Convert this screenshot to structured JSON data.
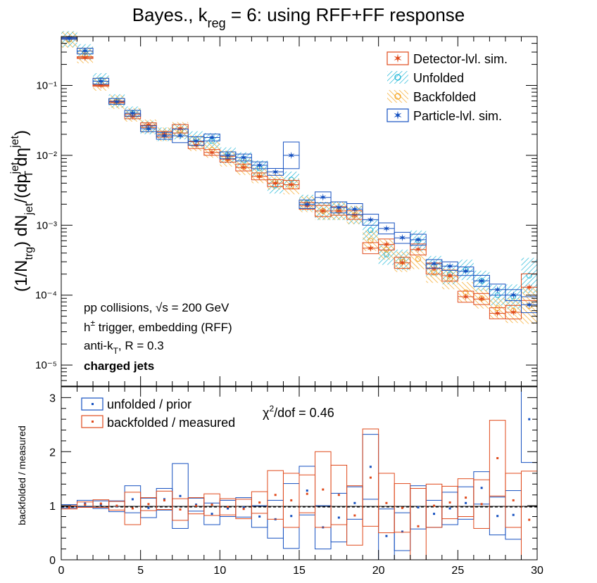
{
  "title_parts": {
    "pre": "Bayes., k",
    "sub": "reg",
    "post": " = 6: using RFF+FF response"
  },
  "colors": {
    "detector": "#e04a1c",
    "unfolded": "#22b8d8",
    "backfolded": "#f5a623",
    "particle": "#1550c0",
    "axis": "#000000"
  },
  "legend_top": [
    {
      "label": "Detector-lvl. sim.",
      "key": "detector",
      "icon": "star-marker-box"
    },
    {
      "label": "Unfolded",
      "key": "unfolded",
      "icon": "hatched-circle"
    },
    {
      "label": "Backfolded",
      "key": "backfolded",
      "icon": "hatched-circle"
    },
    {
      "label": "Particle-lvl. sim.",
      "key": "particle",
      "icon": "star-marker-box"
    }
  ],
  "legend_bottom": [
    {
      "label": "unfolded / prior",
      "key": "particle"
    },
    {
      "label": "backfolded / measured",
      "key": "detector"
    }
  ],
  "top_ylabel_parts": {
    "a": "(1/N",
    "a_sub": "trg",
    "b": ") dN",
    "b_sub": "jet",
    "c": "/(dp",
    "c_sup": "jet",
    "c_sub": "T",
    "d": "dη",
    "d_sup": "jet",
    "e": ")"
  },
  "bottom_ylabel": "backfolded / measured",
  "annotation": {
    "line1": "pp collisions, √s = 200 GeV",
    "line2_pre": "h",
    "line2_sup": "±",
    "line2_post": " trigger, embedding (RFF)",
    "line3_pre": "anti-k",
    "line3_sub": "T",
    "line3_post": ", R = 0.3",
    "line4": "charged jets"
  },
  "chi2_parts": {
    "pre": "χ",
    "sup": "2",
    "post": "/dof = 0.46"
  },
  "chart_data": [
    {
      "type": "scatter",
      "yscale": "log",
      "xlim": [
        0,
        30
      ],
      "ylim": [
        5e-06,
        0.5
      ],
      "yticks": [
        {
          "v": 0.0001,
          "label": "10⁻⁴"
        },
        {
          "v": 0.001,
          "label": "10⁻³"
        },
        {
          "v": 0.01,
          "label": "10⁻²"
        },
        {
          "v": 0.1,
          "label": "10⁻¹"
        },
        {
          "v": 1e-05,
          "label": "10⁻⁵"
        }
      ],
      "x": [
        0.5,
        1.5,
        2.5,
        3.5,
        4.5,
        5.5,
        6.5,
        7.5,
        8.5,
        9.5,
        10.5,
        11.5,
        12.5,
        13.5,
        14.5,
        15.5,
        16.5,
        17.5,
        18.5,
        19.5,
        20.5,
        21.5,
        22.5,
        23.5,
        24.5,
        25.5,
        26.5,
        27.5,
        28.5,
        29.5
      ],
      "series": [
        {
          "name": "Detector-lvl. sim.",
          "key": "detector",
          "values": [
            0.47,
            0.25,
            0.1,
            0.058,
            0.036,
            0.027,
            0.02,
            0.024,
            0.014,
            0.011,
            0.0088,
            0.0067,
            0.005,
            0.004,
            0.0038,
            0.0019,
            0.0016,
            0.0016,
            0.0014,
            0.00047,
            0.00053,
            0.00029,
            0.00045,
            0.00024,
            0.00019,
            9.5e-05,
            8.8e-05,
            5.5e-05,
            5.7e-05,
            0.00013
          ],
          "err": [
            0.03,
            0.03,
            0.03,
            0.03,
            0.08,
            0.08,
            0.1,
            0.15,
            0.12,
            0.1,
            0.1,
            0.12,
            0.12,
            0.12,
            0.15,
            0.12,
            0.2,
            0.15,
            0.15,
            0.2,
            0.2,
            0.2,
            0.2,
            0.2,
            0.2,
            0.2,
            0.2,
            0.2,
            0.25,
            0.55
          ]
        },
        {
          "name": "Particle-lvl. sim.",
          "key": "particle",
          "values": [
            0.47,
            0.31,
            0.115,
            0.059,
            0.04,
            0.024,
            0.019,
            0.019,
            0.016,
            0.018,
            0.01,
            0.0093,
            0.0072,
            0.0058,
            0.01,
            0.002,
            0.0025,
            0.0018,
            0.0017,
            0.0012,
            0.0009,
            0.00066,
            0.00062,
            0.00028,
            0.00026,
            0.00022,
            0.00016,
            0.00012,
            0.0001,
            7.3e-05
          ],
          "err": [
            0.03,
            0.1,
            0.1,
            0.1,
            0.1,
            0.1,
            0.12,
            0.25,
            0.15,
            0.12,
            0.12,
            0.12,
            0.12,
            0.12,
            0.55,
            0.15,
            0.2,
            0.2,
            0.2,
            0.2,
            0.2,
            0.2,
            0.2,
            0.15,
            0.15,
            0.15,
            0.2,
            0.2,
            0.2,
            0.3
          ]
        },
        {
          "name": "Unfolded",
          "key": "unfolded",
          "values": [
            0.46,
            0.3,
            0.12,
            0.06,
            0.04,
            0.025,
            0.02,
            0.022,
            0.017,
            0.016,
            0.01,
            0.0085,
            0.0065,
            0.0037,
            0.0045,
            0.0021,
            0.0016,
            0.0016,
            0.0014,
            0.00085,
            0.00038,
            0.00032,
            0.0006,
            0.00026,
            0.0002,
            0.00023,
            0.00016,
            0.0001,
            9.5e-05,
            0.00019
          ],
          "err": [
            0.3,
            0.3,
            0.25,
            0.25,
            0.25,
            0.25,
            0.25,
            0.3,
            0.3,
            0.3,
            0.3,
            0.3,
            0.3,
            0.3,
            0.3,
            0.3,
            0.35,
            0.35,
            0.35,
            0.4,
            0.4,
            0.4,
            0.4,
            0.4,
            0.4,
            0.4,
            0.4,
            0.4,
            0.5,
            0.8
          ]
        },
        {
          "name": "Backfolded",
          "key": "backfolded",
          "values": [
            0.45,
            0.27,
            0.105,
            0.058,
            0.038,
            0.026,
            0.02,
            0.023,
            0.015,
            0.012,
            0.009,
            0.0068,
            0.0052,
            0.0042,
            0.0036,
            0.002,
            0.0016,
            0.0016,
            0.0014,
            0.0006,
            0.00045,
            0.0003,
            0.00033,
            0.00021,
            0.00017,
            0.00011,
            9e-05,
            6.5e-05,
            6e-05,
            7e-05
          ],
          "err": [
            0.3,
            0.3,
            0.25,
            0.25,
            0.25,
            0.25,
            0.25,
            0.3,
            0.3,
            0.3,
            0.3,
            0.3,
            0.3,
            0.3,
            0.3,
            0.3,
            0.35,
            0.35,
            0.35,
            0.4,
            0.4,
            0.4,
            0.4,
            0.4,
            0.4,
            0.4,
            0.4,
            0.4,
            0.5,
            0.8
          ]
        }
      ]
    },
    {
      "type": "scatter",
      "xlim": [
        0,
        30
      ],
      "ylim": [
        0,
        3.2
      ],
      "xticks": [
        0,
        5,
        10,
        15,
        20,
        25,
        30
      ],
      "yticks": [
        0,
        1,
        2,
        3
      ],
      "x": [
        0.5,
        1.5,
        2.5,
        3.5,
        4.5,
        5.5,
        6.5,
        7.5,
        8.5,
        9.5,
        10.5,
        11.5,
        12.5,
        13.5,
        14.5,
        15.5,
        16.5,
        17.5,
        18.5,
        19.5,
        20.5,
        21.5,
        22.5,
        23.5,
        24.5,
        25.5,
        26.5,
        27.5,
        28.5,
        29.5
      ],
      "series": [
        {
          "name": "unfolded / prior",
          "key": "particle",
          "values": [
            0.99,
            1.04,
            1.02,
            0.99,
            1.12,
            0.96,
            1.12,
            1.18,
            1.02,
            0.85,
            0.95,
            0.97,
            0.8,
            0.75,
            0.81,
            1.28,
            0.6,
            0.78,
            1.05,
            1.72,
            0.44,
            0.52,
            0.97,
            0.85,
            0.95,
            1.05,
            1.33,
            0.81,
            0.83,
            2.6
          ],
          "halfw": [
            0.03,
            0.06,
            0.07,
            0.1,
            0.25,
            0.18,
            0.2,
            0.6,
            0.12,
            0.2,
            0.15,
            0.18,
            0.2,
            0.35,
            0.6,
            0.45,
            0.4,
            0.45,
            0.3,
            0.6,
            0.5,
            0.35,
            0.4,
            0.25,
            0.3,
            0.3,
            0.3,
            0.35,
            0.45,
            0.8
          ]
        },
        {
          "name": "backfolded / measured",
          "key": "detector",
          "values": [
            0.97,
            1.02,
            1.04,
            1.0,
            0.95,
            1.03,
            1.1,
            0.93,
            1.0,
            1.02,
            0.98,
            0.94,
            1.06,
            1.2,
            1.1,
            1.22,
            1.3,
            1.2,
            0.82,
            1.52,
            1.05,
            0.96,
            0.62,
            1.0,
            1.06,
            1.15,
            1.03,
            1.88,
            1.1,
            0.74
          ],
          "halfw": [
            0.03,
            0.05,
            0.07,
            0.08,
            0.3,
            0.12,
            0.17,
            0.2,
            0.15,
            0.2,
            0.15,
            0.18,
            0.2,
            0.45,
            0.5,
            0.35,
            0.7,
            0.55,
            0.55,
            0.9,
            0.55,
            0.45,
            0.7,
            0.4,
            0.3,
            0.35,
            0.45,
            0.7,
            0.5,
            0.9
          ]
        }
      ]
    }
  ]
}
